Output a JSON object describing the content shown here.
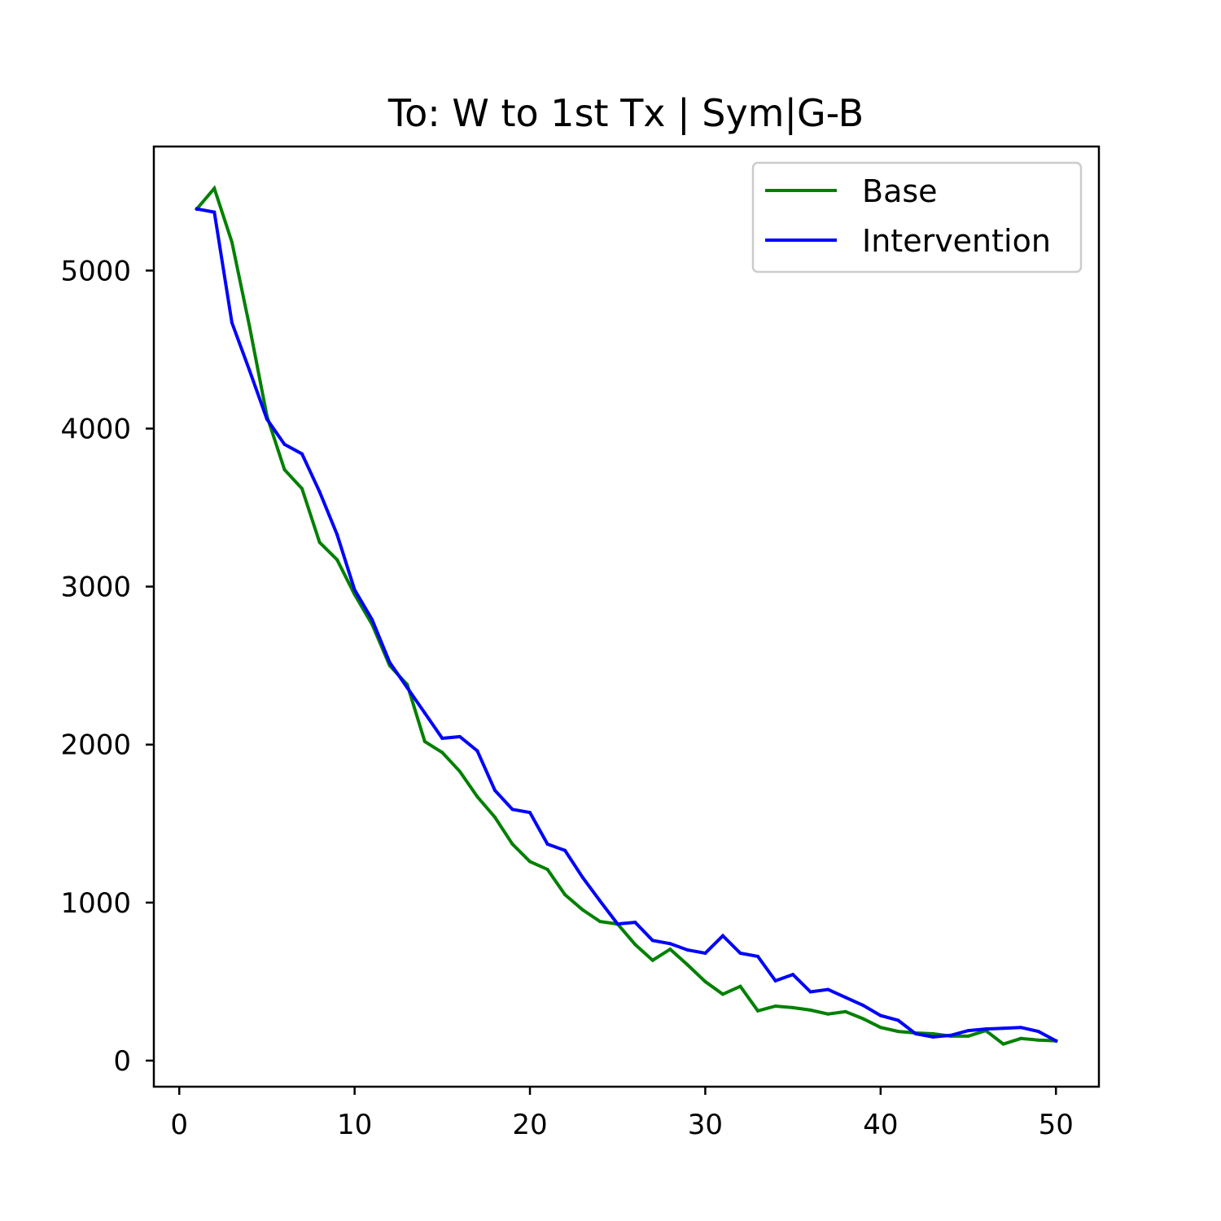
{
  "chart_data": {
    "type": "line",
    "title": "To: W to 1st Tx | Sym|G-B",
    "xlabel": "",
    "ylabel": "",
    "xlim": [
      -1.45,
      52.45
    ],
    "ylim": [
      -165,
      5785
    ],
    "xticks": [
      0,
      10,
      20,
      30,
      40,
      50
    ],
    "yticks": [
      0,
      1000,
      2000,
      3000,
      4000,
      5000
    ],
    "grid": false,
    "legend_position": "top-right",
    "x": [
      1,
      2,
      3,
      4,
      5,
      6,
      7,
      8,
      9,
      10,
      11,
      12,
      13,
      14,
      15,
      16,
      17,
      18,
      19,
      20,
      21,
      22,
      23,
      24,
      25,
      26,
      27,
      28,
      29,
      30,
      31,
      32,
      33,
      34,
      35,
      36,
      37,
      38,
      39,
      40,
      41,
      42,
      43,
      44,
      45,
      46,
      47,
      48,
      49,
      50
    ],
    "series": [
      {
        "name": "Base",
        "color": "#008000",
        "values": [
          5390,
          5520,
          5180,
          4650,
          4080,
          3740,
          3620,
          3280,
          3170,
          2950,
          2760,
          2500,
          2380,
          2020,
          1950,
          1830,
          1670,
          1540,
          1370,
          1260,
          1210,
          1050,
          955,
          880,
          865,
          735,
          635,
          705,
          605,
          500,
          420,
          470,
          315,
          345,
          335,
          320,
          295,
          310,
          265,
          210,
          185,
          175,
          170,
          155,
          155,
          190,
          105,
          140,
          130,
          125
        ]
      },
      {
        "name": "Intervention",
        "color": "#0000ff",
        "values": [
          5390,
          5370,
          4670,
          4370,
          4060,
          3900,
          3840,
          3600,
          3330,
          2980,
          2790,
          2520,
          2360,
          2200,
          2040,
          2050,
          1960,
          1710,
          1590,
          1570,
          1370,
          1330,
          1160,
          1010,
          865,
          875,
          760,
          740,
          700,
          680,
          790,
          680,
          660,
          505,
          545,
          435,
          450,
          400,
          350,
          285,
          255,
          170,
          150,
          160,
          190,
          200,
          205,
          210,
          185,
          125
        ]
      }
    ]
  }
}
